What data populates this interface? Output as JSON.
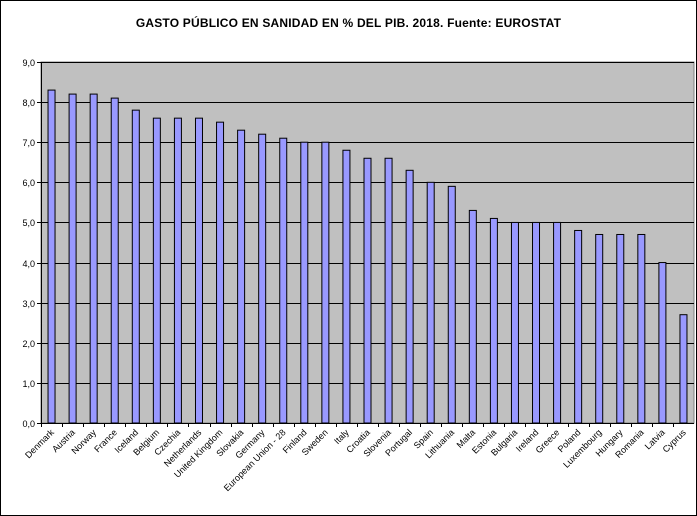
{
  "colors": {
    "plot_background": "#c0c0c0",
    "bar_fill": "#9999ff",
    "bar_stroke": "#000000",
    "gridline": "#000000"
  },
  "chart_data": {
    "type": "bar",
    "title": "GASTO PÚBLICO EN SANIDAD EN % DEL PIB. 2018. Fuente: EUROSTAT",
    "xlabel": "",
    "ylabel": "",
    "ylim": [
      0,
      9
    ],
    "yticks": [
      "0,0",
      "1,0",
      "2,0",
      "3,0",
      "4,0",
      "5,0",
      "6,0",
      "7,0",
      "8,0",
      "9,0"
    ],
    "grid": "horizontal",
    "legend": "none",
    "categories": [
      "Denmark",
      "Austria",
      "Norway",
      "France",
      "Iceland",
      "Belgium",
      "Czechia",
      "Netherlands",
      "United Kingdom",
      "Slovakia",
      "Germany",
      "European Union - 28",
      "Finland",
      "Sweden",
      "Italy",
      "Croatia",
      "Slovenia",
      "Portugal",
      "Spain",
      "Lithuania",
      "Malta",
      "Estonia",
      "Bulgaria",
      "Ireland",
      "Greece",
      "Poland",
      "Luxembourg",
      "Hungary",
      "Romania",
      "Latvia",
      "Cyprus"
    ],
    "values": [
      8.3,
      8.2,
      8.2,
      8.1,
      7.8,
      7.6,
      7.6,
      7.6,
      7.5,
      7.3,
      7.2,
      7.1,
      7.0,
      7.0,
      6.8,
      6.6,
      6.6,
      6.3,
      6.0,
      5.9,
      5.3,
      5.1,
      5.0,
      5.0,
      5.0,
      4.8,
      4.7,
      4.7,
      4.7,
      4.0,
      2.7
    ]
  }
}
